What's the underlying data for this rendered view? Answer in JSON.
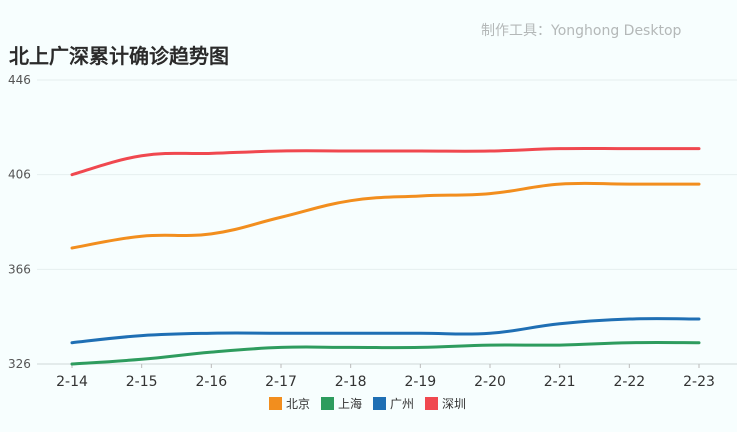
{
  "watermark": "制作工具：Yonghong Desktop",
  "chart_data": {
    "type": "line",
    "title": "北上广深累计确诊趋势图",
    "xlabel": "",
    "ylabel": "",
    "categories": [
      "2-14",
      "2-15",
      "2-16",
      "2-17",
      "2-18",
      "2-19",
      "2-20",
      "2-21",
      "2-22",
      "2-23"
    ],
    "ylim": [
      326,
      446
    ],
    "yticks": [
      326,
      366,
      406,
      446
    ],
    "yticks_label": [
      "326",
      "366",
      "406",
      "446"
    ],
    "grid": true,
    "legend": "bottom",
    "series": [
      {
        "name": "北京",
        "color": "#f28e1e",
        "values": [
          375,
          380,
          381,
          388,
          395,
          397,
          398,
          402,
          402,
          402
        ]
      },
      {
        "name": "上海",
        "color": "#2e9c5e",
        "values": [
          326,
          328,
          331,
          333,
          333,
          333,
          334,
          334,
          335,
          335
        ]
      },
      {
        "name": "广州",
        "color": "#1f6fb4",
        "values": [
          335,
          338,
          339,
          339,
          339,
          339,
          339,
          343,
          345,
          345
        ]
      },
      {
        "name": "深圳",
        "color": "#f0484f",
        "values": [
          406,
          414,
          415,
          416,
          416,
          416,
          416,
          417,
          417,
          417
        ]
      }
    ]
  }
}
